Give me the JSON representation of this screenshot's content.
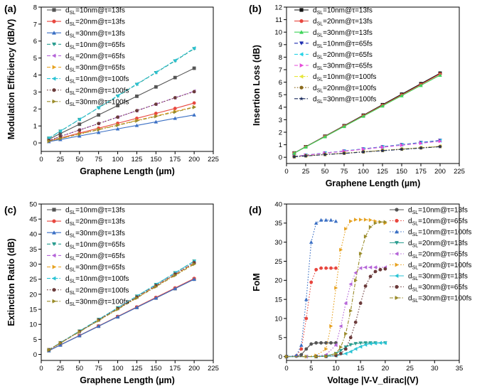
{
  "chart_data": [
    {
      "panel": "(a)",
      "type": "line",
      "title": "",
      "xlabel": "Graphene Length (µm)",
      "ylabel": "Modulation Efficiency (dB/V)",
      "xlim": [
        0,
        225
      ],
      "ylim": [
        -0.5,
        8
      ],
      "xticks": [
        0,
        25,
        50,
        75,
        100,
        125,
        150,
        175,
        200,
        225
      ],
      "yticks": [
        0,
        1,
        2,
        3,
        4,
        5,
        6,
        7,
        8
      ],
      "x": [
        10,
        25,
        50,
        75,
        100,
        125,
        150,
        175,
        200
      ],
      "legend_position": "top-left",
      "series": [
        {
          "name": "10nm@τ=13fs",
          "color": "#555555",
          "marker": "square",
          "dash": "solid",
          "values": [
            0.22,
            0.55,
            1.1,
            1.65,
            2.2,
            2.75,
            3.3,
            3.85,
            4.4
          ]
        },
        {
          "name": "20nm@τ=13fs",
          "color": "#e8473f",
          "marker": "circle",
          "dash": "solid",
          "values": [
            0.12,
            0.29,
            0.58,
            0.87,
            1.16,
            1.45,
            1.74,
            2.03,
            2.35
          ]
        },
        {
          "name": "30nm@τ=13fs",
          "color": "#3a6fc4",
          "marker": "triangle",
          "dash": "solid",
          "values": [
            0.08,
            0.2,
            0.41,
            0.62,
            0.83,
            1.03,
            1.24,
            1.45,
            1.65
          ]
        },
        {
          "name": "10nm@τ=65fs",
          "color": "#2a9d8f",
          "marker": "tri-down",
          "dash": "dash",
          "values": [
            0.28,
            0.69,
            1.38,
            2.07,
            2.76,
            3.45,
            4.14,
            4.83,
            5.55
          ]
        },
        {
          "name": "20nm@τ=65fs",
          "color": "#b565d8",
          "marker": "tri-left",
          "dash": "dash",
          "values": [
            0.15,
            0.38,
            0.76,
            1.14,
            1.52,
            1.9,
            2.28,
            2.66,
            3.05
          ]
        },
        {
          "name": "30nm@τ=65fs",
          "color": "#e6a11f",
          "marker": "tri-right",
          "dash": "dash",
          "values": [
            0.11,
            0.27,
            0.53,
            0.8,
            1.06,
            1.33,
            1.59,
            1.86,
            2.12
          ]
        },
        {
          "name": "10nm@τ=100fs",
          "color": "#29c3d4",
          "marker": "tri-left",
          "dash": "dashdot",
          "values": [
            0.28,
            0.7,
            1.39,
            2.08,
            2.78,
            3.47,
            4.16,
            4.86,
            5.58
          ]
        },
        {
          "name": "20nm@τ=100fs",
          "color": "#6b3b3b",
          "marker": "circle",
          "dash": "dot",
          "values": [
            0.15,
            0.38,
            0.76,
            1.14,
            1.52,
            1.9,
            2.28,
            2.66,
            3.02
          ]
        },
        {
          "name": "30nm@τ=100fs",
          "color": "#9a8b2a",
          "marker": "tri-right",
          "dash": "dashdot",
          "values": [
            0.1,
            0.26,
            0.52,
            0.78,
            1.04,
            1.3,
            1.56,
            1.82,
            2.1
          ]
        }
      ]
    },
    {
      "panel": "(b)",
      "type": "line",
      "title": "",
      "xlabel": "Graphene Length (µm)",
      "ylabel": "Insertion Loss (dB)",
      "xlim": [
        0,
        225
      ],
      "ylim": [
        -0.5,
        12
      ],
      "xticks": [
        0,
        25,
        50,
        75,
        100,
        125,
        150,
        175,
        200,
        225
      ],
      "yticks": [
        0,
        1,
        2,
        3,
        4,
        5,
        6,
        7,
        8,
        9,
        10,
        11,
        12
      ],
      "x": [
        10,
        25,
        50,
        75,
        100,
        125,
        150,
        175,
        200
      ],
      "legend_position": "top-left",
      "series": [
        {
          "name": "10nm@τ=13fs",
          "color": "#111111",
          "marker": "square",
          "dash": "solid",
          "values": [
            0.34,
            0.84,
            1.68,
            2.52,
            3.36,
            4.2,
            5.04,
            5.88,
            6.72
          ]
        },
        {
          "name": "20nm@τ=13fs",
          "color": "#e8473f",
          "marker": "circle",
          "dash": "solid",
          "values": [
            0.33,
            0.83,
            1.66,
            2.49,
            3.32,
            4.15,
            4.98,
            5.81,
            6.65
          ]
        },
        {
          "name": "30nm@τ=13fs",
          "color": "#3fd45a",
          "marker": "triangle",
          "dash": "solid",
          "values": [
            0.33,
            0.82,
            1.64,
            2.46,
            3.28,
            4.1,
            4.92,
            5.74,
            6.56
          ]
        },
        {
          "name": "10nm@τ=65fs",
          "color": "#1f2fb0",
          "marker": "tri-down",
          "dash": "dash",
          "values": [
            0.07,
            0.17,
            0.34,
            0.5,
            0.67,
            0.84,
            1.01,
            1.18,
            1.35
          ]
        },
        {
          "name": "20nm@τ=65fs",
          "color": "#29d3e6",
          "marker": "tri-left",
          "dash": "dash",
          "values": [
            0.07,
            0.16,
            0.33,
            0.49,
            0.66,
            0.82,
            0.99,
            1.15,
            1.32
          ]
        },
        {
          "name": "30nm@τ=65fs",
          "color": "#e64ad9",
          "marker": "tri-right",
          "dash": "dash",
          "values": [
            0.06,
            0.16,
            0.32,
            0.48,
            0.64,
            0.8,
            0.96,
            1.12,
            1.28
          ]
        },
        {
          "name": "10nm@τ=100fs",
          "color": "#e6e63a",
          "marker": "tri-left",
          "dash": "dashdot",
          "values": [
            0.05,
            0.11,
            0.22,
            0.33,
            0.44,
            0.55,
            0.66,
            0.77,
            0.88
          ]
        },
        {
          "name": "20nm@τ=100fs",
          "color": "#8b6b1f",
          "marker": "circle",
          "dash": "dot",
          "values": [
            0.04,
            0.11,
            0.22,
            0.32,
            0.43,
            0.54,
            0.65,
            0.75,
            0.86
          ]
        },
        {
          "name": "30nm@τ=100fs",
          "color": "#1a2a5c",
          "marker": "star",
          "dash": "dashdot",
          "values": [
            0.04,
            0.1,
            0.21,
            0.31,
            0.42,
            0.52,
            0.63,
            0.73,
            0.84
          ]
        }
      ]
    },
    {
      "panel": "(c)",
      "type": "line",
      "title": "",
      "xlabel": "Graphene Length (µm)",
      "ylabel": "Extinction Ratio (dB)",
      "xlim": [
        0,
        225
      ],
      "ylim": [
        -2,
        50
      ],
      "xticks": [
        0,
        25,
        50,
        75,
        100,
        125,
        150,
        175,
        200,
        225
      ],
      "yticks": [
        0,
        5,
        10,
        15,
        20,
        25,
        30,
        35,
        40,
        45,
        50
      ],
      "x": [
        10,
        25,
        50,
        75,
        100,
        125,
        150,
        175,
        200
      ],
      "legend_position": "top-left",
      "series": [
        {
          "name": "10nm@τ=13fs",
          "color": "#555555",
          "marker": "square",
          "dash": "solid",
          "values": [
            1.25,
            3.13,
            6.25,
            9.38,
            12.5,
            15.63,
            18.75,
            21.88,
            25.0
          ]
        },
        {
          "name": "20nm@τ=13fs",
          "color": "#e8473f",
          "marker": "circle",
          "dash": "solid",
          "values": [
            1.26,
            3.16,
            6.31,
            9.47,
            12.63,
            15.78,
            18.94,
            22.09,
            25.25
          ]
        },
        {
          "name": "30nm@τ=13fs",
          "color": "#3a6fc4",
          "marker": "triangle",
          "dash": "solid",
          "values": [
            1.25,
            3.13,
            6.25,
            9.38,
            12.5,
            15.63,
            18.75,
            21.88,
            25.0
          ]
        },
        {
          "name": "10nm@τ=65fs",
          "color": "#2a9d8f",
          "marker": "tri-down",
          "dash": "dash",
          "values": [
            1.55,
            3.88,
            7.75,
            11.63,
            15.5,
            19.38,
            23.25,
            27.13,
            31.0
          ]
        },
        {
          "name": "20nm@τ=65fs",
          "color": "#b565d8",
          "marker": "tri-left",
          "dash": "dash",
          "values": [
            1.53,
            3.81,
            7.63,
            11.44,
            15.25,
            19.06,
            22.88,
            26.69,
            30.5
          ]
        },
        {
          "name": "30nm@τ=65fs",
          "color": "#e6a11f",
          "marker": "tri-right",
          "dash": "dash",
          "values": [
            1.51,
            3.78,
            7.56,
            11.34,
            15.13,
            18.91,
            22.69,
            26.47,
            30.25
          ]
        },
        {
          "name": "10nm@τ=100fs",
          "color": "#29c3d4",
          "marker": "tri-left",
          "dash": "dashdot",
          "values": [
            1.55,
            3.88,
            7.75,
            11.63,
            15.5,
            19.38,
            23.25,
            27.13,
            31.0
          ]
        },
        {
          "name": "20nm@τ=100fs",
          "color": "#6b3b3b",
          "marker": "circle",
          "dash": "dot",
          "values": [
            1.53,
            3.81,
            7.63,
            11.44,
            15.25,
            19.06,
            22.88,
            26.69,
            30.5
          ]
        },
        {
          "name": "30nm@τ=100fs",
          "color": "#9a8b2a",
          "marker": "tri-right",
          "dash": "dashdot",
          "values": [
            1.5,
            3.75,
            7.5,
            11.25,
            15.0,
            18.75,
            22.5,
            26.25,
            30.0
          ]
        }
      ]
    },
    {
      "panel": "(d)",
      "type": "line",
      "title": "",
      "xlabel": "Voltage |V-V_dirac|(V)",
      "ylabel": "FoM",
      "xlim": [
        0,
        35
      ],
      "ylim": [
        -1,
        40
      ],
      "xticks": [
        0,
        5,
        10,
        15,
        20,
        25,
        30,
        35
      ],
      "yticks": [
        0,
        5,
        10,
        15,
        20,
        25,
        30,
        35,
        40
      ],
      "legend_position": "top-right",
      "series": [
        {
          "name": "10nm@τ=13fs",
          "color": "#555555",
          "marker": "circle",
          "dash": "solid",
          "x": [
            0,
            2,
            3,
            4,
            5,
            6,
            7,
            8,
            9,
            10
          ],
          "values": [
            0.0,
            0.1,
            0.5,
            2.0,
            3.3,
            3.6,
            3.6,
            3.6,
            3.6,
            3.6
          ]
        },
        {
          "name": "10nm@τ=65fs",
          "color": "#e8473f",
          "marker": "circle",
          "dash": "dot",
          "x": [
            0,
            2,
            3,
            4,
            5,
            6,
            7,
            8,
            9,
            10
          ],
          "values": [
            0.0,
            0.2,
            2.0,
            10.0,
            19.5,
            22.8,
            23.2,
            23.2,
            23.2,
            23.2
          ]
        },
        {
          "name": "10nm@τ=100fs",
          "color": "#3a6fc4",
          "marker": "triangle",
          "dash": "dot",
          "x": [
            0,
            2,
            3,
            4,
            5,
            6,
            7,
            8,
            9,
            10
          ],
          "values": [
            0.0,
            0.3,
            3.0,
            15.0,
            30.0,
            35.0,
            35.8,
            35.8,
            35.8,
            35.5
          ]
        },
        {
          "name": "20nm@τ=13fs",
          "color": "#2a9d8f",
          "marker": "tri-down",
          "dash": "solid",
          "x": [
            0,
            4,
            6,
            8,
            10,
            11,
            12,
            13,
            14,
            15,
            16,
            17,
            18,
            20
          ],
          "values": [
            0.0,
            0.0,
            0.05,
            0.2,
            0.8,
            1.6,
            2.5,
            3.1,
            3.4,
            3.55,
            3.6,
            3.6,
            3.6,
            3.6
          ]
        },
        {
          "name": "20nm@τ=65fs",
          "color": "#b565d8",
          "marker": "tri-left",
          "dash": "dot",
          "x": [
            0,
            4,
            6,
            8,
            10,
            11,
            12,
            13,
            14,
            15,
            16,
            17,
            18,
            20
          ],
          "values": [
            0.0,
            0.0,
            0.1,
            0.5,
            3.0,
            8.0,
            14.0,
            19.0,
            22.0,
            23.2,
            23.4,
            23.4,
            23.4,
            23.4
          ]
        },
        {
          "name": "20nm@τ=100fs",
          "color": "#e6a11f",
          "marker": "tri-right",
          "dash": "dot",
          "x": [
            0,
            4,
            6,
            8,
            9,
            10,
            11,
            12,
            13,
            14,
            15,
            16,
            17,
            18,
            20
          ],
          "values": [
            0.0,
            0.0,
            0.3,
            2.0,
            8.0,
            18.0,
            28.0,
            33.5,
            35.5,
            35.9,
            35.9,
            35.9,
            35.8,
            35.5,
            35.0
          ]
        },
        {
          "name": "30nm@τ=13fs",
          "color": "#29c3d4",
          "marker": "tri-left",
          "dash": "solid",
          "x": [
            0,
            6,
            8,
            10,
            12,
            13,
            14,
            15,
            16,
            17,
            18,
            19,
            20
          ],
          "values": [
            0.0,
            0.0,
            0.05,
            0.2,
            0.8,
            1.3,
            2.0,
            2.6,
            3.1,
            3.4,
            3.5,
            3.6,
            3.6
          ]
        },
        {
          "name": "30nm@τ=65fs",
          "color": "#6b3b3b",
          "marker": "circle",
          "dash": "dot",
          "x": [
            0,
            6,
            8,
            10,
            11,
            12,
            13,
            14,
            15,
            16,
            17,
            18,
            19,
            20
          ],
          "values": [
            0.0,
            0.0,
            0.05,
            0.3,
            0.8,
            2.0,
            5.0,
            9.0,
            14.0,
            18.5,
            21.0,
            22.3,
            22.8,
            23.0
          ]
        },
        {
          "name": "30nm@τ=100fs",
          "color": "#9a8b2a",
          "marker": "tri-right",
          "dash": "dashdot",
          "x": [
            0,
            6,
            8,
            10,
            11,
            12,
            13,
            14,
            15,
            16,
            17,
            18,
            19,
            20
          ],
          "values": [
            0.0,
            0.0,
            0.1,
            0.8,
            2.5,
            6.0,
            12.0,
            20.0,
            27.0,
            31.5,
            34.0,
            35.0,
            35.3,
            35.3
          ]
        }
      ]
    }
  ],
  "legend_prefix": "d",
  "legend_subscript": "SL",
  "legend_separator": "="
}
